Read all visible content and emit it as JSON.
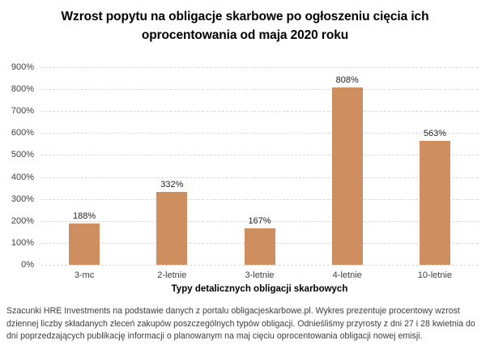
{
  "title": "Wzrost popytu na obligacje skarbowe po ogłoszeniu cięcia ich\noprocentowania od maja 2020 roku",
  "chart_data": {
    "type": "bar",
    "categories": [
      "3-mc",
      "2-letnie",
      "3-letnie",
      "4-letnie",
      "10-letnie"
    ],
    "values": [
      188,
      332,
      167,
      808,
      563
    ],
    "value_label_suffix": "%",
    "title": "Wzrost popytu na obligacje skarbowe po ogłoszeniu cięcia ich oprocentowania od maja 2020 roku",
    "xlabel": "Typy detalicznych obligacji skarbowych",
    "ylabel": "",
    "ylim": [
      0,
      900
    ],
    "ytick_step": 100,
    "ytick_suffix": "%",
    "grid": "horizontal-dashed",
    "legend": "none",
    "bar_color": "#ce8e60",
    "gridline_color": "#d9d9d9"
  },
  "footer": "Szacunki HRE Investments na podstawie danych z portalu obligacjeskarbowe.pl. Wykres prezentuje procentowy wzrost dziennej liczby składanych zleceń zakupów poszczególnych typów obligacji. Odnieśliśmy przyrosty z dni 27 i 28 kwietnia do dni poprzedzających publikację informacji o planowanym na maj cięciu oprocentowania obligacji nowej emisji."
}
